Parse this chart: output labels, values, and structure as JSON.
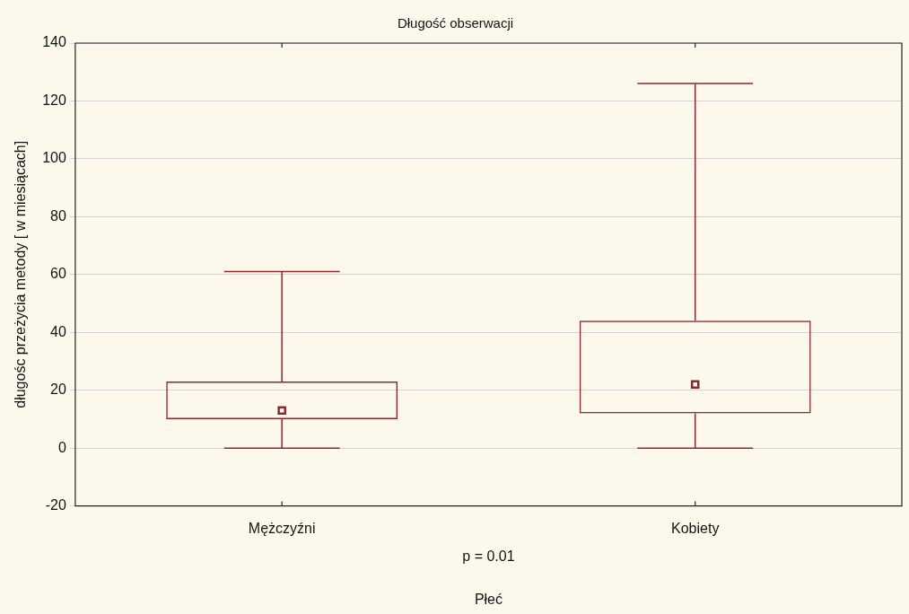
{
  "chart_data": {
    "type": "box",
    "title": "Długość obserwacji",
    "xlabel": "Płeć",
    "ylabel": "długośc przeżycia metody [ w miesiącach]",
    "categories": [
      "Mężczyźni",
      "Kobiety"
    ],
    "boxes": [
      {
        "low": 0,
        "q1": 10,
        "median": 13,
        "q3": 23,
        "high": 61
      },
      {
        "low": 0,
        "q1": 12,
        "median": 22,
        "q3": 44,
        "high": 126
      }
    ],
    "color": "#8b2a2a",
    "ylim": [
      -20,
      140
    ],
    "yticks": [
      -20,
      0,
      20,
      40,
      60,
      80,
      100,
      120,
      140
    ],
    "grid": "y",
    "legend": false,
    "marker": "square",
    "annotations": [
      "p = 0.01"
    ]
  }
}
